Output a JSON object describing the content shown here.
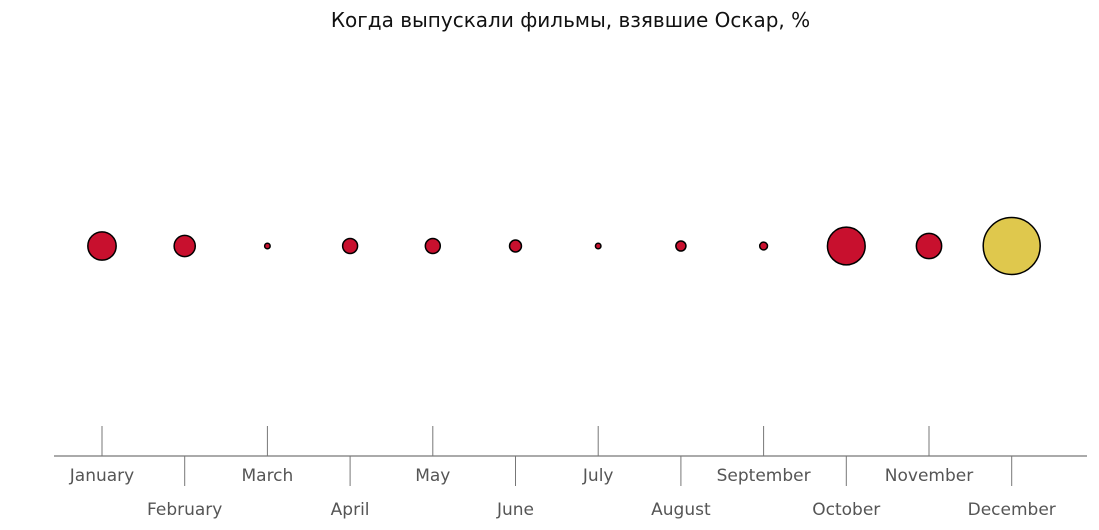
{
  "chart_data": {
    "type": "scatter",
    "title": "Когда выпускали фильмы, взявшие Оскар, %",
    "xlabel": "",
    "ylabel": "",
    "categories": [
      "January",
      "February",
      "March",
      "April",
      "May",
      "June",
      "July",
      "August",
      "September",
      "October",
      "November",
      "December"
    ],
    "values": [
      7.9,
      4.4,
      0.3,
      2.2,
      2.2,
      1.4,
      0.3,
      1.0,
      0.6,
      14.0,
      6.3,
      32.0
    ],
    "highlight_category": "December",
    "grid": false,
    "legend": "none",
    "colors": {
      "default": "#c8102e",
      "highlight": "#dfc84d",
      "outline": "#000000",
      "axis": "#777777"
    }
  }
}
